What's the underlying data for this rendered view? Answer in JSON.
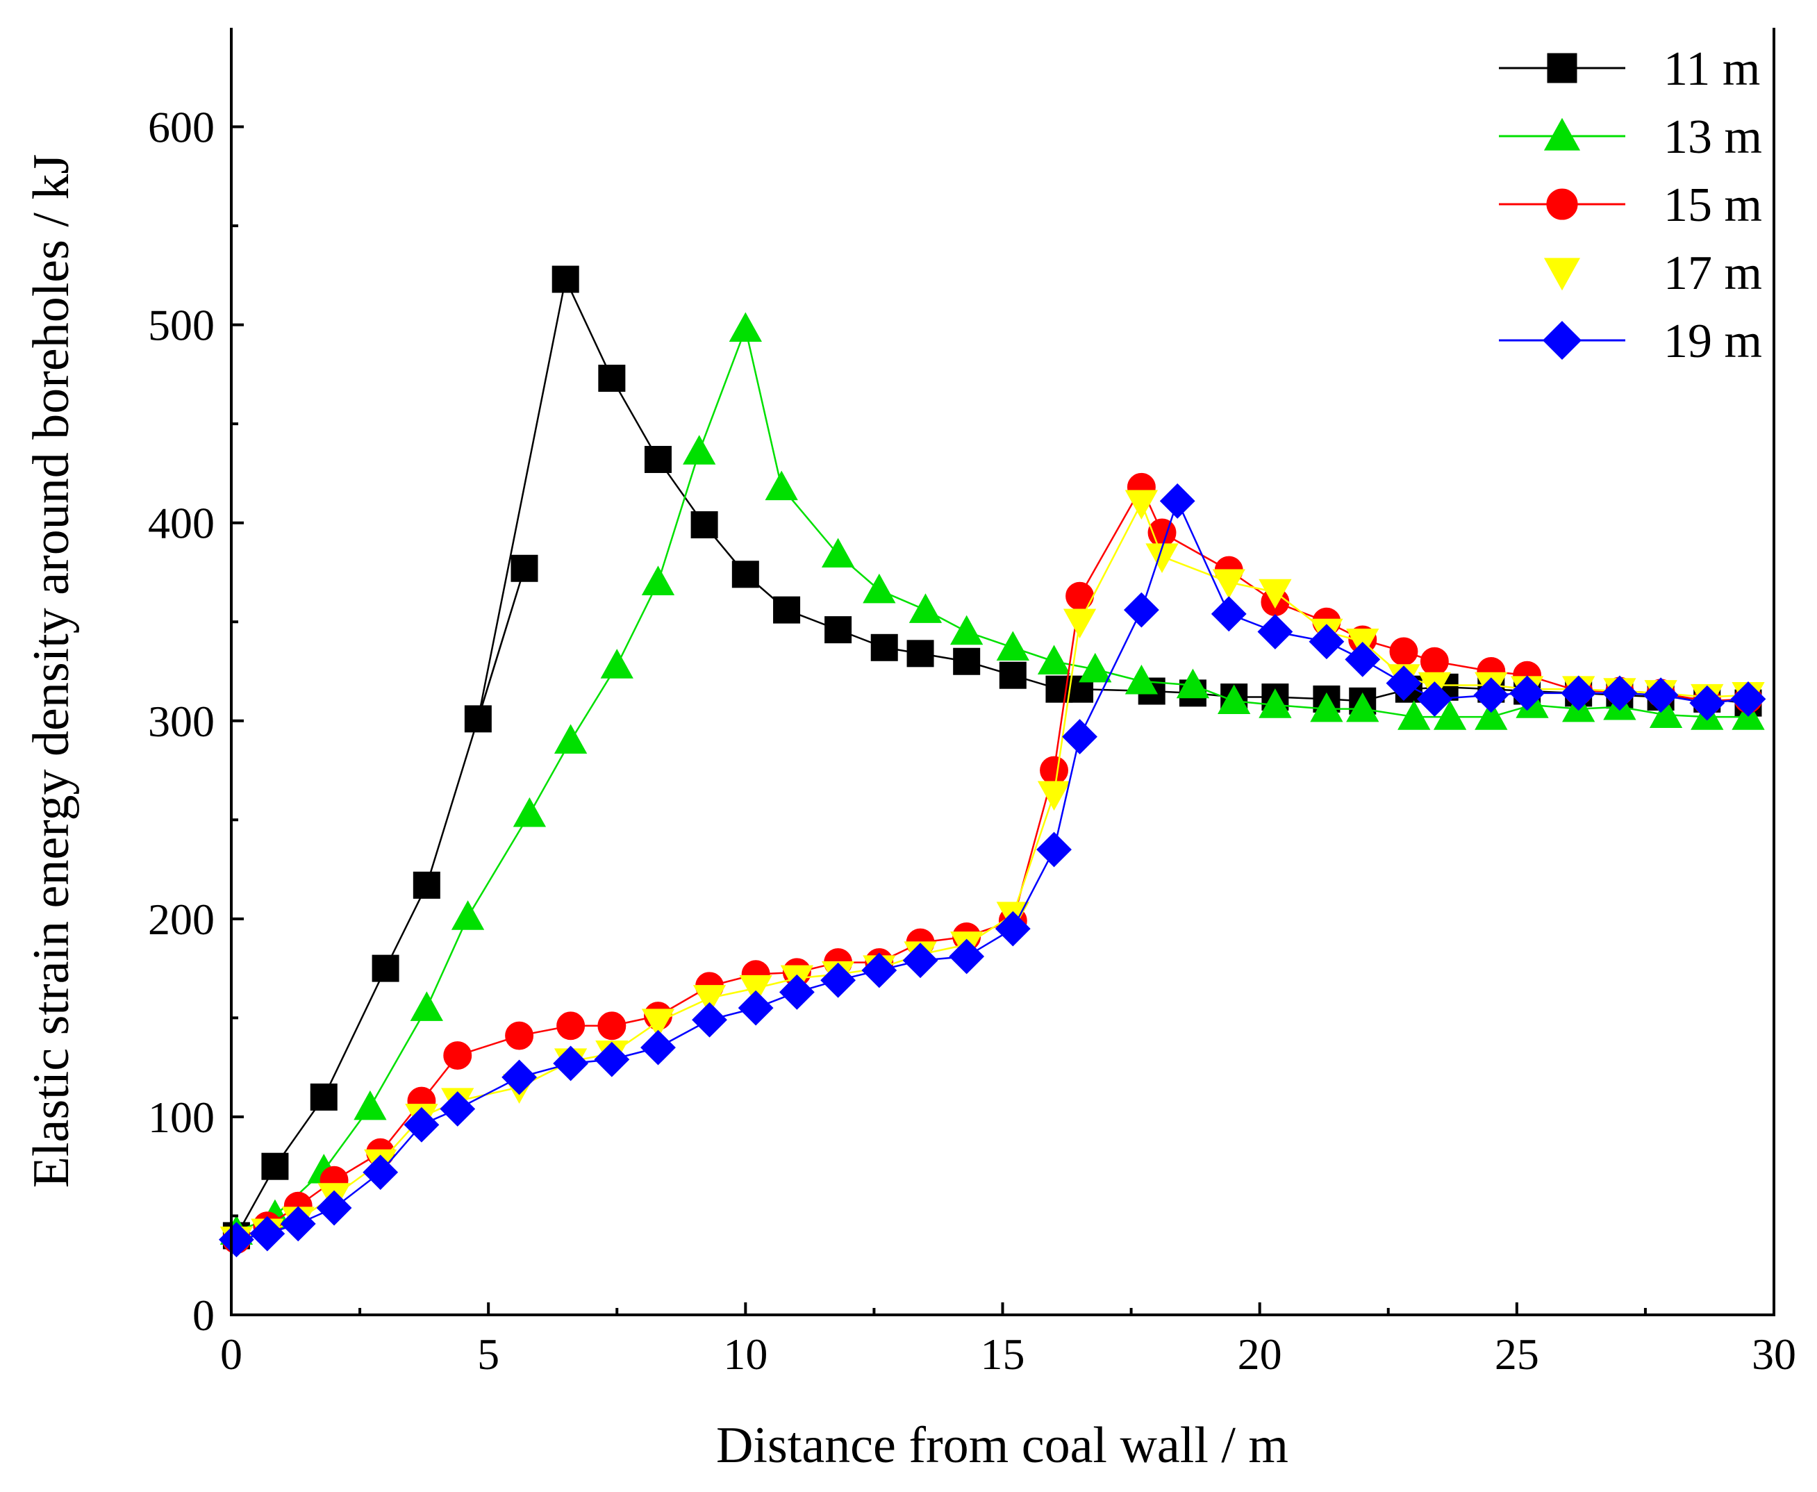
{
  "chart_data": {
    "type": "line",
    "title": "",
    "xlabel": "Distance from coal wall / m",
    "ylabel": "Elastic strain energy density around boreholes / kJ",
    "xlim": [
      0,
      30
    ],
    "ylim": [
      0,
      650
    ],
    "xticks": [
      0,
      5,
      10,
      15,
      20,
      25,
      30
    ],
    "yticks": [
      0,
      100,
      200,
      300,
      400,
      500,
      600
    ],
    "grid": false,
    "legend_position": "top-right",
    "series": [
      {
        "name": "11 m",
        "color": "#000000",
        "marker": "square",
        "x": [
          0.1,
          0.85,
          1.8,
          3.0,
          3.8,
          5.7,
          4.8,
          6.5,
          7.4,
          8.3,
          9.2,
          10.0,
          10.8,
          11.8,
          12.7,
          13.4,
          14.3,
          15.2,
          16.1,
          16.5,
          17.9,
          18.7,
          19.5,
          20.3,
          21.3,
          22.0,
          22.9,
          23.6,
          24.5,
          25.2,
          26.2,
          27.0,
          27.8,
          28.7,
          29.5
        ],
        "y": [
          40,
          75,
          110,
          175,
          217,
          377,
          301,
          523,
          473,
          432,
          399,
          374,
          356,
          346,
          337,
          334,
          330,
          323,
          316,
          316,
          315,
          314,
          312,
          312,
          311,
          310,
          316,
          317,
          316,
          315,
          314,
          313,
          312,
          311,
          309
        ]
      },
      {
        "name": "13 m",
        "color": "#00e000",
        "marker": "triangle-up",
        "x": [
          0.1,
          0.85,
          1.8,
          2.7,
          3.8,
          4.6,
          5.8,
          6.6,
          7.5,
          8.3,
          9.1,
          10.0,
          10.7,
          11.8,
          12.6,
          13.5,
          14.3,
          15.2,
          16.0,
          16.8,
          17.7,
          18.7,
          19.5,
          20.3,
          21.3,
          22.0,
          23.0,
          23.7,
          24.5,
          25.3,
          26.2,
          27.0,
          27.9,
          28.7,
          29.5
        ],
        "y": [
          42,
          50,
          73,
          105,
          155,
          201,
          253,
          290,
          328,
          370,
          436,
          498,
          418,
          384,
          366,
          356,
          345,
          337,
          330,
          326,
          320,
          318,
          310,
          308,
          306,
          306,
          302,
          302,
          302,
          308,
          306,
          307,
          303,
          302,
          302
        ]
      },
      {
        "name": "15 m",
        "color": "#ff0000",
        "marker": "circle",
        "x": [
          0.1,
          0.7,
          1.3,
          2.0,
          2.9,
          3.7,
          4.4,
          5.6,
          6.6,
          7.4,
          8.3,
          9.3,
          10.2,
          11.0,
          11.8,
          12.6,
          13.4,
          14.3,
          15.2,
          16.0,
          16.5,
          17.7,
          18.1,
          19.4,
          20.3,
          21.3,
          22.0,
          22.8,
          23.4,
          24.5,
          25.2,
          26.2,
          27.0,
          27.8,
          28.7,
          29.5
        ],
        "y": [
          38,
          45,
          55,
          68,
          82,
          108,
          131,
          141,
          146,
          146,
          151,
          166,
          172,
          173,
          178,
          178,
          188,
          191,
          199,
          275,
          363,
          418,
          395,
          376,
          360,
          350,
          341,
          335,
          330,
          325,
          323,
          315,
          315,
          314,
          310,
          311
        ]
      },
      {
        "name": "17 m",
        "color": "#ffff00",
        "marker": "triangle-down",
        "x": [
          0.1,
          0.7,
          1.3,
          2.0,
          2.9,
          3.7,
          4.4,
          5.6,
          6.6,
          7.4,
          8.3,
          9.3,
          10.2,
          11.0,
          11.8,
          12.6,
          13.4,
          14.3,
          15.2,
          16.0,
          16.5,
          17.7,
          18.1,
          19.4,
          20.3,
          21.3,
          22.0,
          22.8,
          23.4,
          24.5,
          25.2,
          26.2,
          27.0,
          27.8,
          28.7,
          29.5
        ],
        "y": [
          38,
          42,
          48,
          60,
          77,
          100,
          108,
          115,
          128,
          132,
          148,
          160,
          165,
          170,
          172,
          175,
          182,
          187,
          202,
          263,
          350,
          410,
          383,
          370,
          365,
          345,
          340,
          322,
          318,
          318,
          316,
          316,
          315,
          314,
          312,
          313
        ]
      },
      {
        "name": "19 m",
        "color": "#0000ff",
        "marker": "diamond",
        "x": [
          0.1,
          0.7,
          1.3,
          2.0,
          2.9,
          3.7,
          4.4,
          5.6,
          6.6,
          7.4,
          8.3,
          9.3,
          10.2,
          11.0,
          11.8,
          12.6,
          13.4,
          14.3,
          15.2,
          16.0,
          16.5,
          17.7,
          18.4,
          19.4,
          20.3,
          21.3,
          22.0,
          22.8,
          23.4,
          24.5,
          25.2,
          26.2,
          27.0,
          27.8,
          28.7,
          29.5
        ],
        "y": [
          38,
          41,
          46,
          54,
          72,
          96,
          104,
          120,
          127,
          129,
          135,
          149,
          155,
          163,
          169,
          174,
          179,
          181,
          195,
          235,
          292,
          356,
          411,
          354,
          345,
          340,
          331,
          319,
          311,
          313,
          314,
          314,
          314,
          313,
          309,
          311
        ]
      }
    ]
  }
}
